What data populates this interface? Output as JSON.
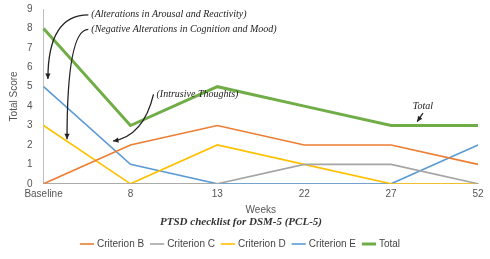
{
  "chart_data": {
    "type": "line",
    "title": "PTSD checklist for DSM-5 (PCL-5)",
    "x_label": "Weeks",
    "y_label": "Total Score",
    "categories": [
      "Baseline",
      "8",
      "13",
      "22",
      "27",
      "52"
    ],
    "series": [
      {
        "name": "Criterion B",
        "color": "#ED7D31",
        "values": [
          0,
          2,
          3,
          2,
          2,
          1
        ]
      },
      {
        "name": "Criterion C",
        "color": "#A5A5A5",
        "values": [
          0,
          0,
          0,
          1,
          1,
          0
        ]
      },
      {
        "name": "Criterion D",
        "color": "#FFC000",
        "values": [
          3,
          0,
          2,
          1,
          0,
          0
        ]
      },
      {
        "name": "Criterion E",
        "color": "#5B9BD5",
        "values": [
          5,
          1,
          0,
          0,
          0,
          2
        ]
      },
      {
        "name": "Total",
        "color": "#70AD47",
        "values": [
          8,
          3,
          5,
          4,
          3,
          3
        ]
      }
    ],
    "ylim": [
      0,
      9
    ],
    "yticks": [
      0,
      1,
      2,
      3,
      4,
      5,
      6,
      7,
      8,
      9
    ],
    "grid": false,
    "legend": "bottom",
    "annotations": [
      "(Alterations in Arousal and Reactivity)",
      "(Negative Alterations in Cognition and Mood)",
      "(Intrusive Thoughts)",
      "Total"
    ]
  }
}
